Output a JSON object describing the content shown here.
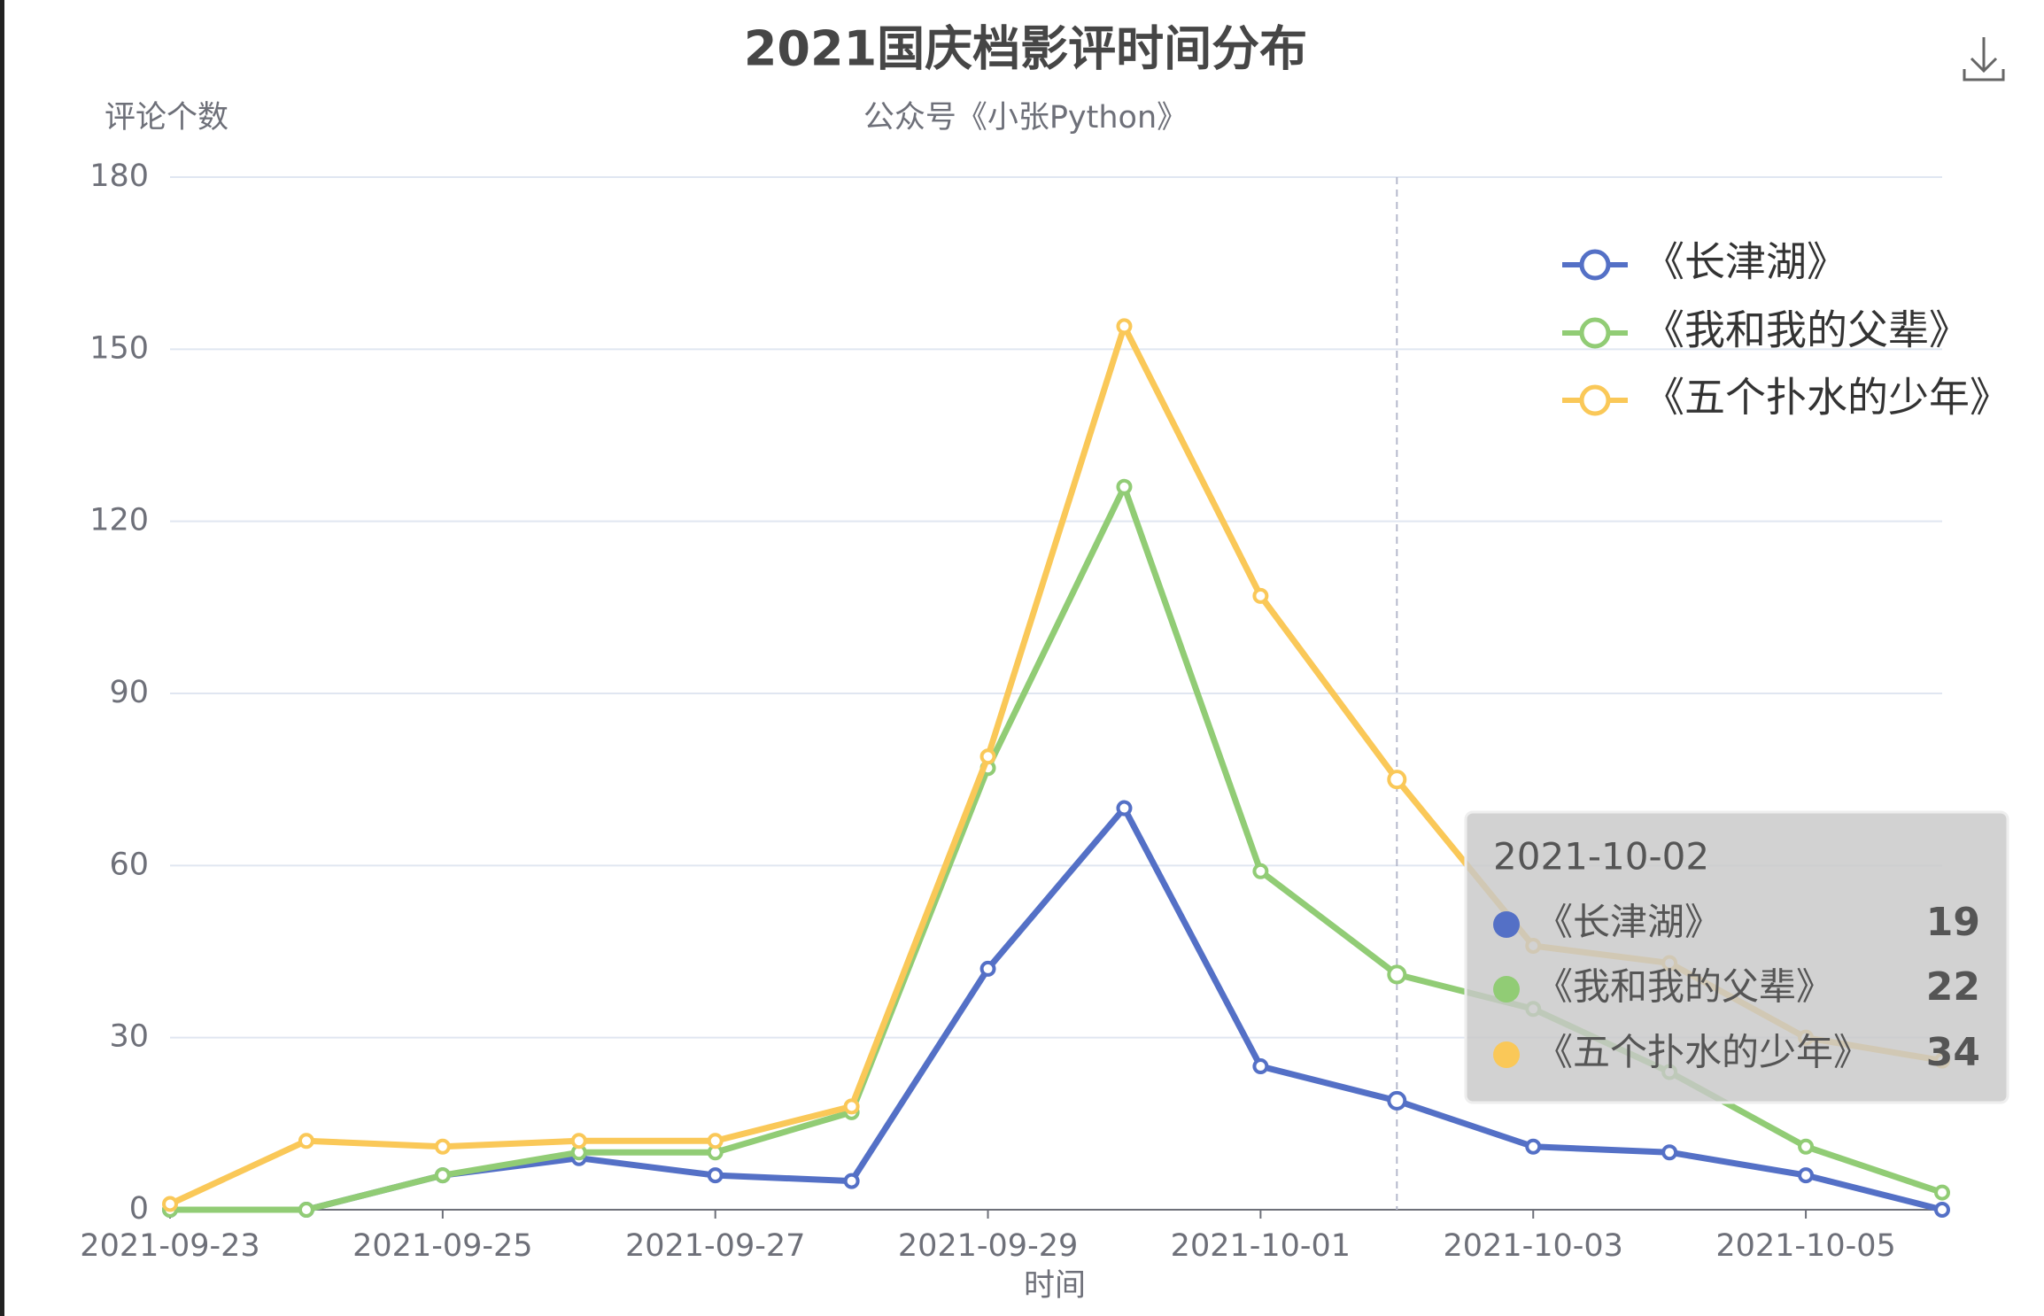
{
  "chart_data": {
    "type": "line",
    "stacked": true,
    "title": "2021国庆档影评时间分布",
    "subtitle": "公众号《小张Python》",
    "y_axis_label": "评论个数",
    "x_axis_label": "时间",
    "categories": [
      "2021-09-23",
      null,
      "2021-09-25",
      null,
      "2021-09-27",
      null,
      "2021-09-29",
      null,
      "2021-10-01",
      "2021-10-02",
      "2021-10-03",
      null,
      "2021-10-05",
      null
    ],
    "series": [
      {
        "name": "《长津湖》",
        "color": "#5470c6",
        "values": [
          0,
          0,
          6,
          9,
          6,
          5,
          42,
          70,
          25,
          19,
          11,
          10,
          6,
          0
        ]
      },
      {
        "name": "《我和我的父辈》",
        "color": "#91cc75",
        "values": [
          0,
          0,
          0,
          1,
          4,
          12,
          35,
          56,
          34,
          22,
          24,
          14,
          5,
          3
        ]
      },
      {
        "name": "《五个扑水的少年》",
        "color": "#fac858",
        "values": [
          1,
          12,
          5,
          2,
          2,
          1,
          2,
          28,
          48,
          34,
          11,
          19,
          19,
          23
        ]
      }
    ],
    "ylim": [
      0,
      180
    ],
    "yticks": [
      0,
      30,
      60,
      90,
      120,
      150,
      180
    ],
    "grid": true,
    "legend_position": "top-right",
    "tooltip_index": 9
  }
}
